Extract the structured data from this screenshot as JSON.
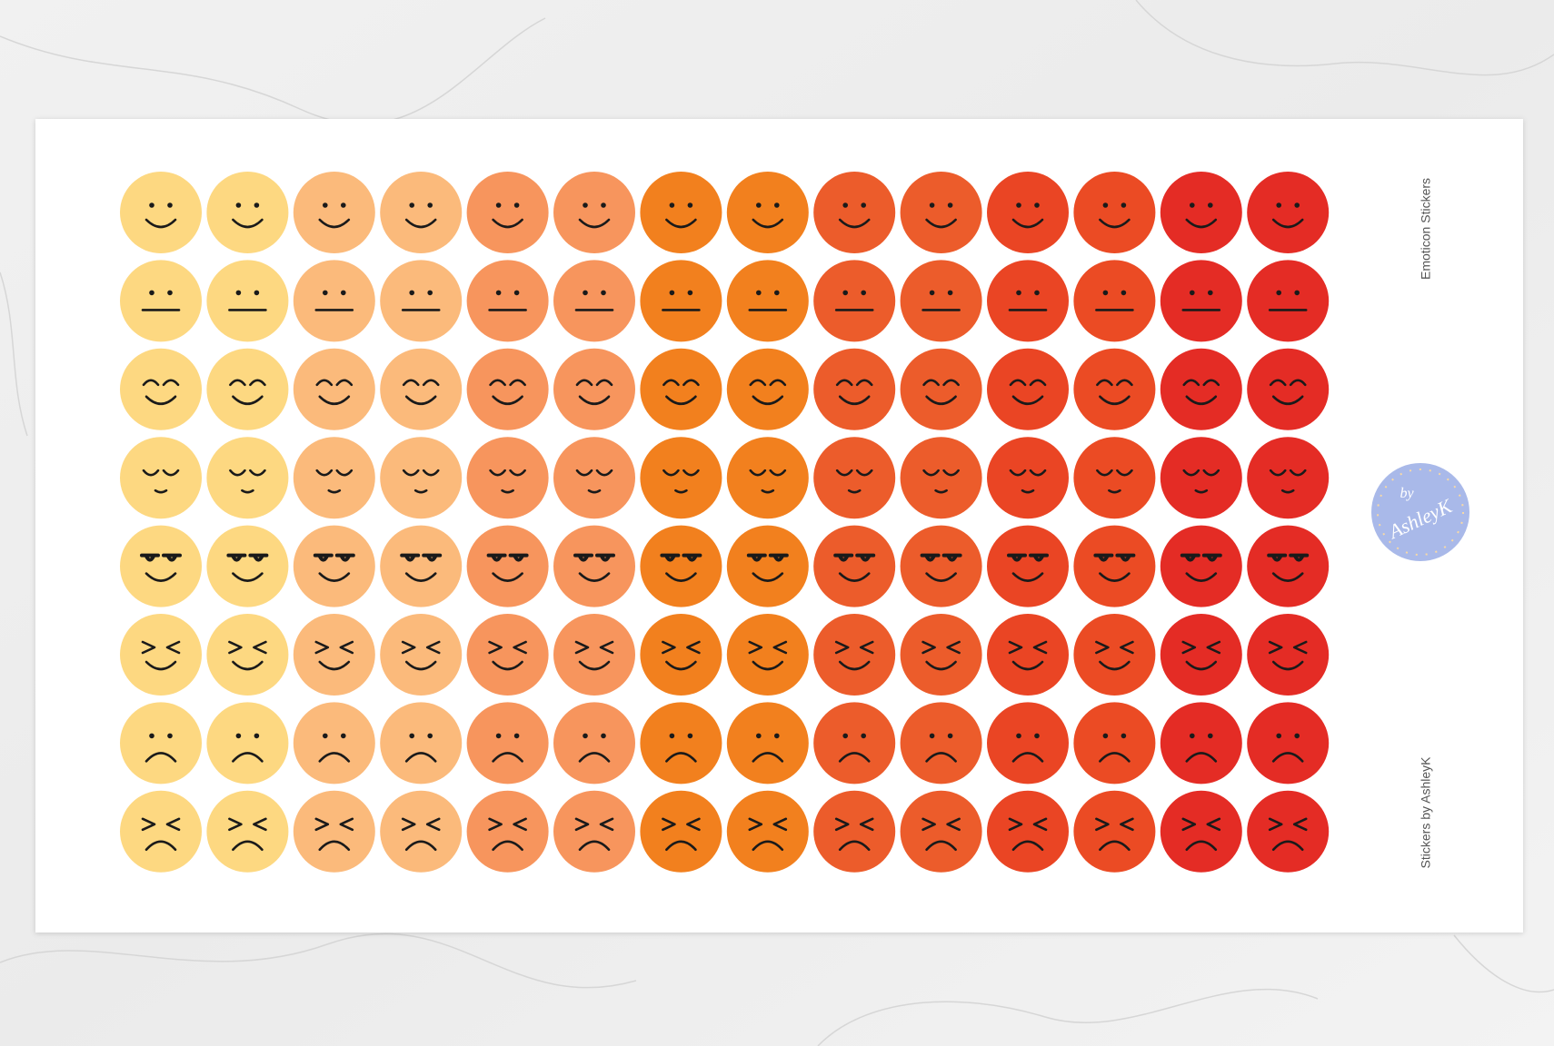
{
  "sheet": {
    "title": "Emoticon Stickers",
    "credit": "Stickers by AshleyK"
  },
  "logo": {
    "prefix": "by",
    "name": "AshleyK"
  }
}
